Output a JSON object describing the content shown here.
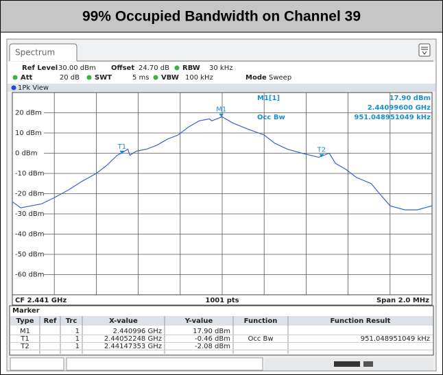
{
  "header": {
    "title": "99% Occupied Bandwidth on Channel 39"
  },
  "tab": "Spectrum",
  "settings": {
    "ref_level_label": "Ref Level",
    "ref_level": "30.00 dBm",
    "offset_label": "Offset",
    "offset": "24.70 dB",
    "rbw_label": "RBW",
    "rbw": "30 kHz",
    "att_label": "Att",
    "att": "20 dB",
    "swt_label": "SWT",
    "swt": "5 ms",
    "vbw_label": "VBW",
    "vbw": "100 kHz",
    "mode_label": "Mode",
    "mode": "Sweep"
  },
  "view": "1Pk View",
  "chart_data": {
    "type": "line",
    "color": "#3a5fd8",
    "x": [
      2.44,
      2.44004,
      2.44014,
      2.4402,
      2.44027,
      2.44033,
      2.4404,
      2.44045,
      2.4405,
      2.44052,
      2.44055,
      2.44056,
      2.44059,
      2.44064,
      2.44069,
      2.44074,
      2.44079,
      2.44084,
      2.44089,
      2.44094,
      2.44095,
      2.441,
      2.44105,
      2.44112,
      2.4412,
      2.44125,
      2.44131,
      2.44138,
      2.44146,
      2.44151,
      2.44154,
      2.44159,
      2.44164,
      2.44171,
      2.44175,
      2.4418,
      2.44187,
      2.44193,
      2.442
    ],
    "values": [
      -24,
      -27,
      -25,
      -22,
      -18,
      -14,
      -10,
      -6,
      -1,
      0,
      2,
      -1,
      1,
      2,
      4,
      7,
      9,
      13,
      16,
      17,
      16,
      18,
      15,
      12,
      9,
      5,
      2,
      0,
      -2,
      0,
      -5,
      -8,
      -12,
      -15,
      -20,
      -26,
      -28,
      -28,
      -26
    ],
    "xlim": [
      2.44,
      2.442
    ],
    "ylim": [
      -70,
      30
    ],
    "yticks": [
      {
        "value": 20,
        "label": "20 dBm"
      },
      {
        "value": 10,
        "label": "10 dBm"
      },
      {
        "value": 0,
        "label": "0 dBm"
      },
      {
        "value": -10,
        "label": "-10 dBm"
      },
      {
        "value": -20,
        "label": "-20 dBm"
      },
      {
        "value": -30,
        "label": "-30 dBm"
      },
      {
        "value": -40,
        "label": "-40 dBm"
      },
      {
        "value": -50,
        "label": "-50 dBm"
      },
      {
        "value": -60,
        "label": "-60 dBm"
      }
    ],
    "grid": true,
    "markers": [
      {
        "label": "M1",
        "x": 2.440996,
        "y": 17.9
      },
      {
        "label": "T1",
        "x": 2.44052248,
        "y": -0.46
      },
      {
        "label": "T2",
        "x": 2.44147353,
        "y": -2.08
      }
    ],
    "readout": {
      "label": "M1[1]",
      "level": "17.90 dBm",
      "frequency": "2.44099600 GHz",
      "function": "Occ Bw",
      "result": "951.048951049 kHz"
    },
    "footer": {
      "center": "CF 2.441 GHz",
      "points": "1001 pts",
      "span": "Span 2.0 MHz"
    }
  },
  "marker_table": {
    "title": "Marker",
    "columns": [
      "Type",
      "Ref",
      "Trc",
      "X-value",
      "Y-value",
      "Function",
      "Function Result"
    ],
    "rows": [
      {
        "type": "M1",
        "trc": "1",
        "x": "2.440996 GHz",
        "y": "17.90 dBm"
      },
      {
        "type": "T1",
        "trc": "1",
        "x": "2.44052248 GHz",
        "y": "-0.46 dBm",
        "function": "Occ Bw",
        "result": "951.048951049 kHz"
      },
      {
        "type": "T2",
        "trc": "1",
        "x": "2.44147353 GHz",
        "y": "-2.08 dBm"
      }
    ]
  }
}
